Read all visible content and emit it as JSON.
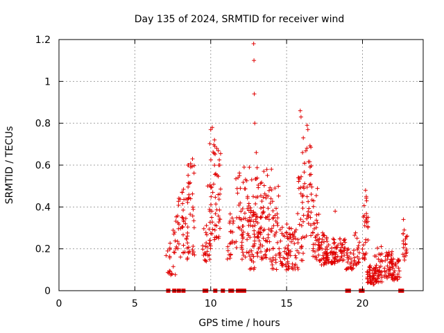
{
  "chart_data": {
    "type": "scatter",
    "title": "Day 135 of 2024, SRMTID for receiver wind",
    "xlabel": "GPS time / hours",
    "ylabel": "SRMTID / TECUs",
    "xlim": [
      0,
      24
    ],
    "ylim": [
      0,
      1.2
    ],
    "xticks": [
      0,
      5,
      10,
      15,
      20
    ],
    "xtick_labels": [
      "0",
      "5",
      "10",
      "15",
      "20"
    ],
    "yticks": [
      0,
      0.2,
      0.4,
      0.6,
      0.8,
      1.0,
      1.2
    ],
    "ytick_labels": [
      "0",
      "0.2",
      "0.4",
      "0.6",
      "0.8",
      "1",
      "1.2"
    ],
    "grid": true,
    "marker": "plus",
    "color": "#e00000",
    "zero_markers_x": [
      7.2,
      7.6,
      7.9,
      8.2,
      9.6,
      9.7,
      10.3,
      10.8,
      11.3,
      11.4,
      11.8,
      11.9,
      12.0,
      12.2,
      19.0,
      19.1,
      19.9,
      20.0,
      22.5,
      22.6
    ],
    "clusters": [
      {
        "x": 7.2,
        "w": 0.15,
        "ymin": 0.08,
        "ymax": 0.2,
        "n": 8
      },
      {
        "x": 7.5,
        "w": 0.2,
        "ymin": 0.05,
        "ymax": 0.3,
        "n": 14
      },
      {
        "x": 7.9,
        "w": 0.25,
        "ymin": 0.15,
        "ymax": 0.45,
        "n": 18
      },
      {
        "x": 8.3,
        "w": 0.25,
        "ymin": 0.18,
        "ymax": 0.55,
        "n": 30
      },
      {
        "x": 8.7,
        "w": 0.25,
        "ymin": 0.15,
        "ymax": 0.63,
        "n": 32
      },
      {
        "x": 9.7,
        "w": 0.25,
        "ymin": 0.14,
        "ymax": 0.32,
        "n": 22
      },
      {
        "x": 10.1,
        "w": 0.2,
        "ymin": 0.2,
        "ymax": 0.78,
        "n": 35
      },
      {
        "x": 10.5,
        "w": 0.2,
        "ymin": 0.25,
        "ymax": 0.7,
        "n": 26
      },
      {
        "x": 11.3,
        "w": 0.3,
        "ymin": 0.15,
        "ymax": 0.4,
        "n": 22
      },
      {
        "x": 11.9,
        "w": 0.25,
        "ymin": 0.2,
        "ymax": 0.58,
        "n": 26
      },
      {
        "x": 12.3,
        "w": 0.25,
        "ymin": 0.15,
        "ymax": 0.6,
        "n": 30
      },
      {
        "x": 12.7,
        "w": 0.2,
        "ymin": 0.1,
        "ymax": 0.4,
        "n": 35
      },
      {
        "x": 13.1,
        "w": 0.25,
        "ymin": 0.15,
        "ymax": 0.59,
        "n": 45
      },
      {
        "x": 13.6,
        "w": 0.3,
        "ymin": 0.15,
        "ymax": 0.58,
        "n": 45
      },
      {
        "x": 14.2,
        "w": 0.3,
        "ymin": 0.1,
        "ymax": 0.5,
        "n": 40
      },
      {
        "x": 14.8,
        "w": 0.3,
        "ymin": 0.1,
        "ymax": 0.32,
        "n": 35
      },
      {
        "x": 15.4,
        "w": 0.3,
        "ymin": 0.1,
        "ymax": 0.3,
        "n": 40
      },
      {
        "x": 15.9,
        "w": 0.2,
        "ymin": 0.1,
        "ymax": 0.6,
        "n": 30
      },
      {
        "x": 16.4,
        "w": 0.3,
        "ymin": 0.25,
        "ymax": 0.7,
        "n": 35
      },
      {
        "x": 16.9,
        "w": 0.3,
        "ymin": 0.15,
        "ymax": 0.5,
        "n": 35
      },
      {
        "x": 17.4,
        "w": 0.3,
        "ymin": 0.12,
        "ymax": 0.28,
        "n": 40
      },
      {
        "x": 17.9,
        "w": 0.3,
        "ymin": 0.13,
        "ymax": 0.25,
        "n": 40
      },
      {
        "x": 18.5,
        "w": 0.35,
        "ymin": 0.14,
        "ymax": 0.25,
        "n": 40
      },
      {
        "x": 19.2,
        "w": 0.3,
        "ymin": 0.1,
        "ymax": 0.2,
        "n": 25
      },
      {
        "x": 19.6,
        "w": 0.2,
        "ymin": 0.12,
        "ymax": 0.28,
        "n": 20
      },
      {
        "x": 20.2,
        "w": 0.2,
        "ymin": 0.15,
        "ymax": 0.45,
        "n": 28
      },
      {
        "x": 20.6,
        "w": 0.3,
        "ymin": 0.03,
        "ymax": 0.12,
        "n": 45
      },
      {
        "x": 21.1,
        "w": 0.3,
        "ymin": 0.04,
        "ymax": 0.22,
        "n": 40
      },
      {
        "x": 21.7,
        "w": 0.3,
        "ymin": 0.06,
        "ymax": 0.2,
        "n": 40
      },
      {
        "x": 22.2,
        "w": 0.3,
        "ymin": 0.05,
        "ymax": 0.16,
        "n": 35
      },
      {
        "x": 22.8,
        "w": 0.15,
        "ymin": 0.12,
        "ymax": 0.28,
        "n": 18
      }
    ],
    "peaks": [
      [
        8.5,
        0.6
      ],
      [
        8.8,
        0.63
      ],
      [
        10.0,
        0.77
      ],
      [
        10.1,
        0.78
      ],
      [
        10.4,
        0.68
      ],
      [
        10.6,
        0.6
      ],
      [
        12.2,
        0.59
      ],
      [
        12.7,
        0.53
      ],
      [
        12.8,
        0.45
      ],
      [
        12.83,
        1.18
      ],
      [
        12.85,
        1.1
      ],
      [
        12.87,
        0.94
      ],
      [
        12.9,
        0.8
      ],
      [
        13.0,
        0.66
      ],
      [
        13.5,
        0.57
      ],
      [
        15.9,
        0.86
      ],
      [
        15.95,
        0.83
      ],
      [
        16.35,
        0.79
      ],
      [
        16.4,
        0.77
      ],
      [
        16.1,
        0.73
      ],
      [
        16.05,
        0.66
      ],
      [
        18.2,
        0.38
      ],
      [
        20.2,
        0.48
      ],
      [
        20.25,
        0.45
      ],
      [
        22.7,
        0.34
      ],
      [
        22.75,
        0.29
      ],
      [
        14.0,
        0.58
      ],
      [
        9.8,
        0.5
      ],
      [
        10.25,
        0.72
      ],
      [
        11.9,
        0.55
      ]
    ]
  }
}
